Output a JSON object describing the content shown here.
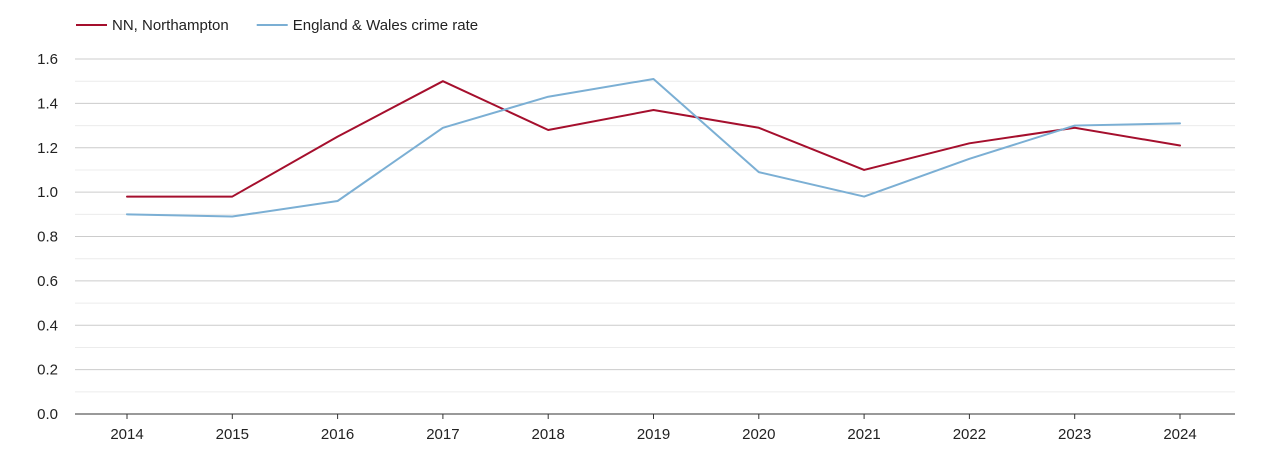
{
  "chart_data": {
    "type": "line",
    "x": [
      "2014",
      "2015",
      "2016",
      "2017",
      "2018",
      "2019",
      "2020",
      "2021",
      "2022",
      "2023",
      "2024"
    ],
    "series": [
      {
        "name": "NN, Northampton",
        "color": "#a50f2d",
        "values": [
          0.98,
          0.98,
          1.25,
          1.5,
          1.28,
          1.37,
          1.29,
          1.1,
          1.22,
          1.29,
          1.21
        ]
      },
      {
        "name": "England & Wales crime rate",
        "color": "#7bafd4",
        "values": [
          0.9,
          0.89,
          0.96,
          1.29,
          1.43,
          1.51,
          1.09,
          0.98,
          1.15,
          1.3,
          1.31
        ]
      }
    ],
    "yticks": [
      "0.0",
      "0.2",
      "0.4",
      "0.6",
      "0.8",
      "1.0",
      "1.2",
      "1.4",
      "1.6"
    ],
    "ylim": [
      0,
      1.6
    ],
    "grid": true,
    "legend_position": "top-left",
    "title": "",
    "xlabel": "",
    "ylabel": ""
  }
}
